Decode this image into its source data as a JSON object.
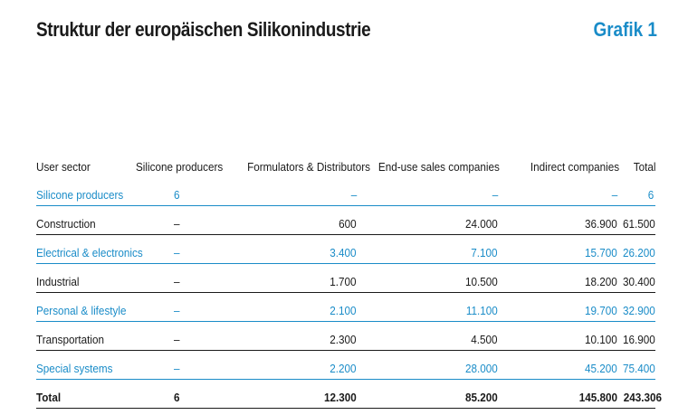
{
  "header": {
    "title": "Struktur der europäischen Silikonindustrie",
    "figure_label": "Grafik 1"
  },
  "table": {
    "columns": [
      "User sector",
      "Silicone producers",
      "Formulators & Distributors",
      "End-use sales companies",
      "Indirect companies",
      "Total"
    ],
    "rows": [
      {
        "sector": "Silicone producers",
        "producers": "6",
        "formulators": "–",
        "end_use": "–",
        "indirect": "–",
        "total": "6"
      },
      {
        "sector": "Construction",
        "producers": "–",
        "formulators": "600",
        "end_use": "24.000",
        "indirect": "36.900",
        "total": "61.500"
      },
      {
        "sector": "Electrical & electronics",
        "producers": "–",
        "formulators": "3.400",
        "end_use": "7.100",
        "indirect": "15.700",
        "total": "26.200"
      },
      {
        "sector": "Industrial",
        "producers": "–",
        "formulators": "1.700",
        "end_use": "10.500",
        "indirect": "18.200",
        "total": "30.400"
      },
      {
        "sector": "Personal & lifestyle",
        "producers": "–",
        "formulators": "2.100",
        "end_use": "11.100",
        "indirect": "19.700",
        "total": "32.900"
      },
      {
        "sector": "Transportation",
        "producers": "–",
        "formulators": "2.300",
        "end_use": "4.500",
        "indirect": "10.100",
        "total": "16.900"
      },
      {
        "sector": "Special systems",
        "producers": "–",
        "formulators": "2.200",
        "end_use": "28.000",
        "indirect": "45.200",
        "total": "75.400"
      }
    ],
    "total_row": {
      "sector": "Total",
      "producers": "6",
      "formulators": "12.300",
      "end_use": "85.200",
      "indirect": "145.800",
      "total": "243.306"
    }
  },
  "colors": {
    "accent": "#1a8cc8",
    "text": "#1a1a1a",
    "background": "#ffffff"
  }
}
